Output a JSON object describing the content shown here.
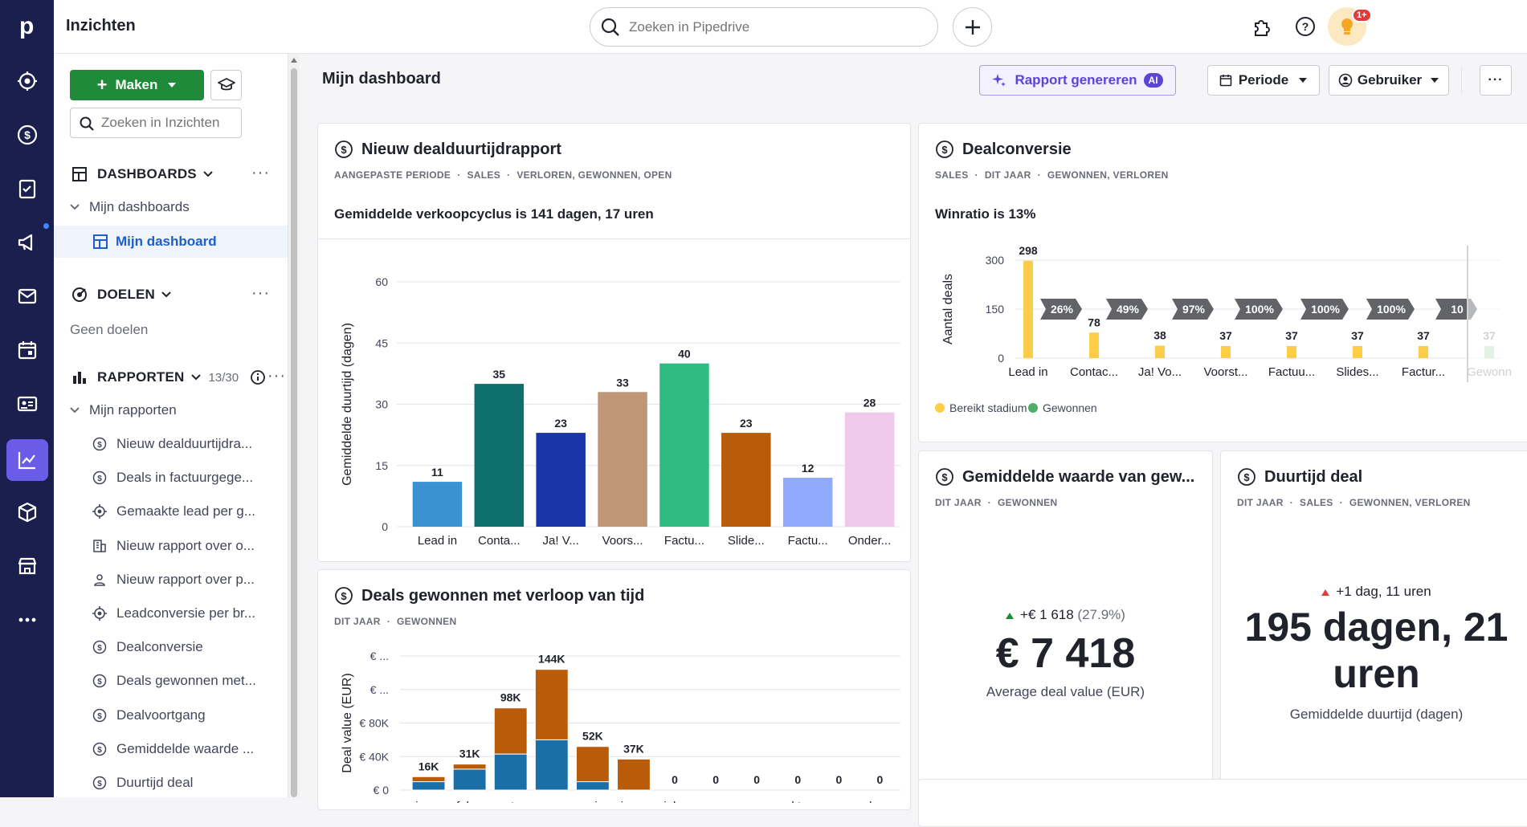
{
  "app": {
    "section_title": "Inzichten"
  },
  "search": {
    "placeholder": "Zoeken in Pipedrive"
  },
  "notifications": {
    "badge": "1+"
  },
  "sidebar": {
    "create_label": "Maken",
    "search_placeholder": "Zoeken in Inzichten",
    "dashboards_label": "DASHBOARDS",
    "my_dashboards_label": "Mijn dashboards",
    "active_dashboard": "Mijn dashboard",
    "goals_label": "DOELEN",
    "no_goals": "Geen doelen",
    "reports_label": "RAPPORTEN",
    "reports_count": "13/30",
    "my_reports_label": "Mijn rapporten",
    "reports": [
      {
        "label": "Nieuw dealduurtijdra...",
        "icon": "dollar-icon"
      },
      {
        "label": "Deals in factuurgege...",
        "icon": "dollar-icon"
      },
      {
        "label": "Gemaakte lead per g...",
        "icon": "target-icon"
      },
      {
        "label": "Nieuw rapport over o...",
        "icon": "building-icon"
      },
      {
        "label": "Nieuw rapport over p...",
        "icon": "person-icon"
      },
      {
        "label": "Leadconversie per br...",
        "icon": "target-icon"
      },
      {
        "label": "Dealconversie",
        "icon": "dollar-icon"
      },
      {
        "label": "Deals gewonnen met...",
        "icon": "dollar-icon"
      },
      {
        "label": "Dealvoortgang",
        "icon": "dollar-icon"
      },
      {
        "label": "Gemiddelde waarde ...",
        "icon": "dollar-icon"
      },
      {
        "label": "Duurtijd deal",
        "icon": "dollar-icon"
      }
    ]
  },
  "header": {
    "title": "Mijn dashboard",
    "generate_label": "Rapport genereren",
    "ai_badge": "AI",
    "period_label": "Periode",
    "user_label": "Gebruiker",
    "more_label": "···"
  },
  "cards": {
    "duration": {
      "title": "Nieuw dealduurtijdrapport",
      "meta": [
        "AANGEPASTE PERIODE",
        "SALES",
        "VERLOREN, GEWONNEN, OPEN"
      ],
      "summary": "Gemiddelde verkoopcyclus is 141 dagen, 17 uren"
    },
    "conversion": {
      "title": "Dealconversie",
      "meta": [
        "SALES",
        "DIT JAAR",
        "GEWONNEN, VERLOREN"
      ],
      "summary": "Winratio is 13%"
    },
    "won_over_time": {
      "title": "Deals gewonnen met verloop van tijd",
      "meta": [
        "DIT JAAR",
        "GEWONNEN"
      ]
    },
    "avg_value": {
      "title": "Gemiddelde waarde van gew...",
      "meta": [
        "DIT JAAR",
        "GEWONNEN"
      ],
      "delta": "+€ 1 618",
      "delta_pct": "(27.9%)",
      "value": "€ 7 418",
      "caption": "Average deal value (EUR)"
    },
    "deal_duration": {
      "title": "Duurtijd deal",
      "meta": [
        "DIT JAAR",
        "SALES",
        "GEWONNEN, VERLOREN"
      ],
      "delta": "+1 dag, 11 uren",
      "value_line1": "195 dagen, 21",
      "value_line2": "uren",
      "caption": "Gemiddelde duurtijd (dagen)"
    }
  },
  "chart_data": [
    {
      "id": "duration",
      "type": "bar",
      "ylabel": "Gemiddelde duurtijd (dagen)",
      "ylim": [
        0,
        60
      ],
      "yticks": [
        "0",
        "15",
        "30",
        "45",
        "60"
      ],
      "categories": [
        "Lead in",
        "Conta...",
        "Ja! V...",
        "Voors...",
        "Factu...",
        "Slide...",
        "Factu...",
        "Onder..."
      ],
      "values": [
        11,
        35,
        23,
        33,
        40,
        23,
        12,
        28
      ],
      "value_labels": [
        "11",
        "35",
        "23",
        "33",
        "40",
        "23",
        "12",
        "28"
      ],
      "colors": [
        "#3a92d0",
        "#0e6e6a",
        "#1a35a8",
        "#bf9677",
        "#2fbb82",
        "#b95c0a",
        "#8fa9fb",
        "#f0c8ec"
      ]
    },
    {
      "id": "conversion",
      "type": "bar",
      "ylabel": "Aantal deals",
      "ylim": [
        0,
        300
      ],
      "yticks": [
        "0",
        "150",
        "300"
      ],
      "categories": [
        "Lead in",
        "Contac...",
        "Ja! Vo...",
        "Voorst...",
        "Factuu...",
        "Slides...",
        "Factur...",
        "Gewonn"
      ],
      "values": [
        298,
        78,
        38,
        37,
        37,
        37,
        37,
        37
      ],
      "value_labels": [
        "298",
        "78",
        "38",
        "37",
        "37",
        "37",
        "37",
        "37"
      ],
      "conversion_rates": [
        "26%",
        "49%",
        "97%",
        "100%",
        "100%",
        "100%",
        "10"
      ],
      "legend": [
        "Bereikt stadium",
        "Gewonnen"
      ],
      "colors": {
        "reached": "#fdcd4a",
        "won": "#4fae6a"
      }
    },
    {
      "id": "won_over_time",
      "type": "bar",
      "stacked": true,
      "ylabel": "Deal value (EUR)",
      "yticks": [
        "€ 0",
        "€ 40K",
        "€ 80K",
        "€ ...",
        "€ ..."
      ],
      "ylim": [
        0,
        160000
      ],
      "categories": [
        "jan...",
        "feb...",
        "mrt...",
        "apr...",
        "mei...",
        "jun...",
        "jul...",
        "aug...",
        "sep...",
        "okt...",
        "nov...",
        "dec..."
      ],
      "totals": [
        16000,
        31000,
        98000,
        144000,
        52000,
        37000,
        0,
        0,
        0,
        0,
        0,
        0
      ],
      "total_labels": [
        "16K",
        "31K",
        "98K",
        "144K",
        "52K",
        "37K",
        "0",
        "0",
        "0",
        "0",
        "0",
        "0"
      ],
      "series": [
        {
          "values": [
            10000,
            25000,
            43000,
            60000,
            10000,
            0,
            0,
            0,
            0,
            0,
            0,
            0
          ],
          "color": "#1a6fa8"
        },
        {
          "values": [
            6000,
            6000,
            55000,
            84000,
            42000,
            37000,
            0,
            0,
            0,
            0,
            0,
            0
          ],
          "color": "#b95c0a"
        }
      ]
    }
  ]
}
